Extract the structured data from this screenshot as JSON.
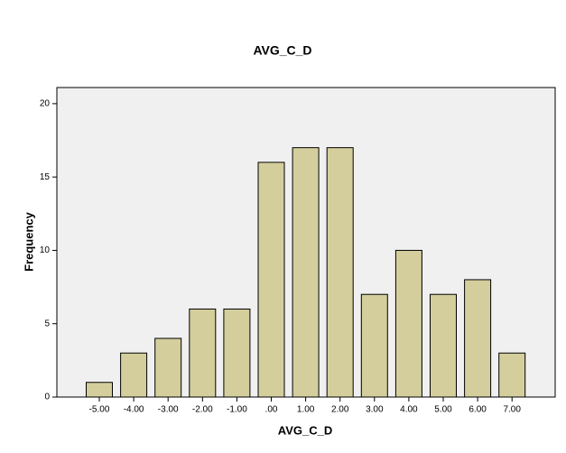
{
  "chart_data": {
    "type": "bar",
    "title": "AVG_C_D",
    "x_label": "AVG_C_D",
    "y_label": "Frequency",
    "categories": [
      "-5.00",
      "-4.00",
      "-3.00",
      "-2.00",
      "-1.00",
      ".00",
      "1.00",
      "2.00",
      "3.00",
      "4.00",
      "5.00",
      "6.00",
      "7.00"
    ],
    "values": [
      1,
      3,
      4,
      6,
      6,
      16,
      17,
      17,
      7,
      10,
      7,
      8,
      3
    ],
    "color": "#d3ce9c",
    "ylim": [
      0,
      21.1
    ],
    "yticks": [
      0,
      5,
      10,
      15,
      20
    ],
    "grid": false
  }
}
